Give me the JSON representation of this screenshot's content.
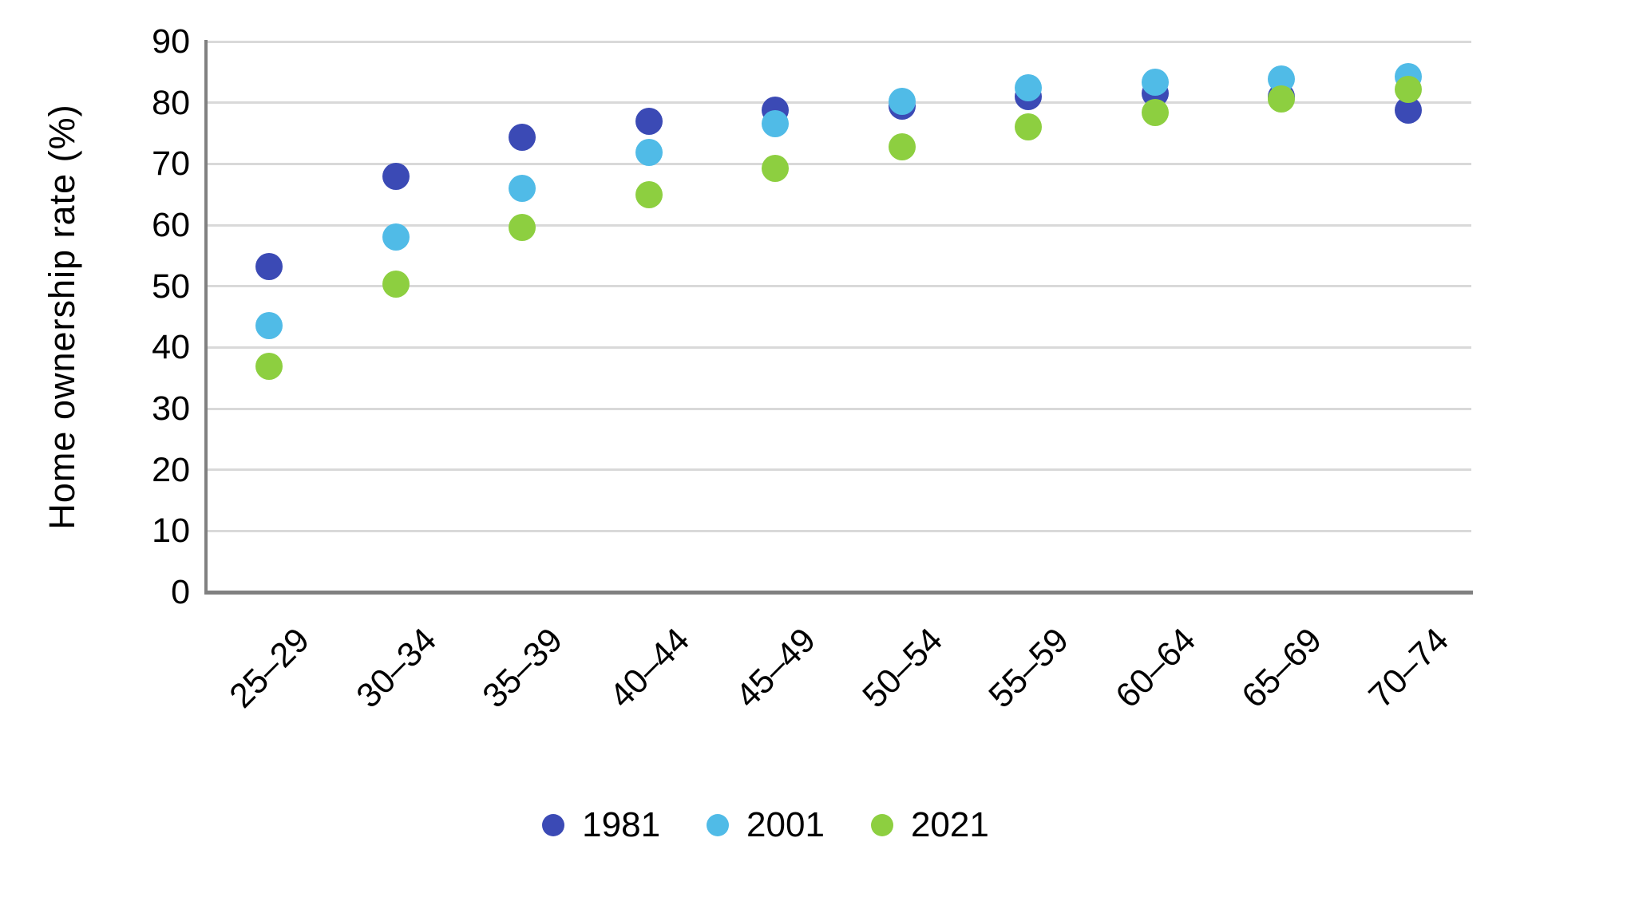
{
  "chart_data": {
    "type": "scatter",
    "title": "",
    "xlabel": "",
    "ylabel": "Home ownership rate (%)",
    "ylim": [
      0,
      90
    ],
    "ytick_step": 10,
    "grid": true,
    "legend_position": "bottom",
    "yticks": [
      "0",
      "10",
      "20",
      "30",
      "40",
      "50",
      "60",
      "70",
      "80",
      "90"
    ],
    "categories": [
      "25–29",
      "30–34",
      "35–39",
      "40–44",
      "45–49",
      "50–54",
      "55–59",
      "60–64",
      "65–69",
      "70–74"
    ],
    "series": [
      {
        "name": "1981",
        "color": "#3B4AB5",
        "values": [
          53.2,
          68.0,
          74.4,
          77.0,
          78.8,
          79.5,
          81.0,
          81.5,
          81.0,
          78.8
        ]
      },
      {
        "name": "2001",
        "color": "#50BBE7",
        "values": [
          43.6,
          58.0,
          66.0,
          71.9,
          76.6,
          80.2,
          82.4,
          83.3,
          83.9,
          84.2
        ]
      },
      {
        "name": "2021",
        "color": "#8DCF40",
        "values": [
          36.9,
          50.3,
          59.6,
          64.9,
          69.3,
          72.8,
          76.1,
          78.4,
          80.6,
          82.2
        ]
      }
    ]
  },
  "styles": {
    "background": "#FFFFFF",
    "grid_color": "#D9D9D9",
    "axis_color": "#808080",
    "text_color": "#000000"
  }
}
